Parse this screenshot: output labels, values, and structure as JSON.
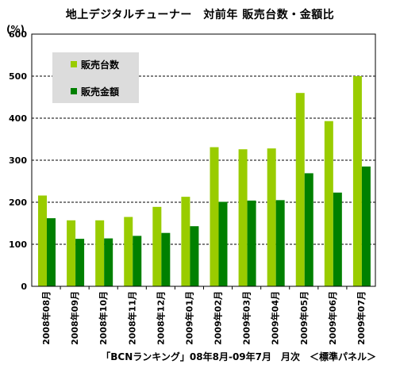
{
  "title": "地上デジタルチューナー　対前年 販売台数・金額比",
  "unit": "(%)",
  "source": "「BCNランキング」08年8月-09年7月　月次　＜標準パネル＞",
  "colors": {
    "units": "#99cc00",
    "amount": "#008000",
    "legend_bg": "#dcdcdc",
    "grid": "#000000"
  },
  "chart_data": {
    "type": "bar",
    "categories": [
      "2008年08月",
      "2008年09月",
      "2008年10月",
      "2008年11月",
      "2008年12月",
      "2009年01月",
      "2009年02月",
      "2009年03月",
      "2009年04月",
      "2009年05月",
      "2009年06月",
      "2009年07月"
    ],
    "series": [
      {
        "name": "販売台数",
        "values": [
          216,
          157,
          157,
          165,
          189,
          213,
          331,
          326,
          328,
          460,
          393,
          500
        ]
      },
      {
        "name": "販売金額",
        "values": [
          162,
          113,
          114,
          120,
          127,
          143,
          201,
          204,
          205,
          269,
          223,
          285
        ]
      }
    ],
    "ylim": [
      0,
      600
    ],
    "yticks": [
      0,
      100,
      200,
      300,
      400,
      500,
      600
    ],
    "grid": "dashed-horizontal",
    "legend_placement": "top-left"
  }
}
